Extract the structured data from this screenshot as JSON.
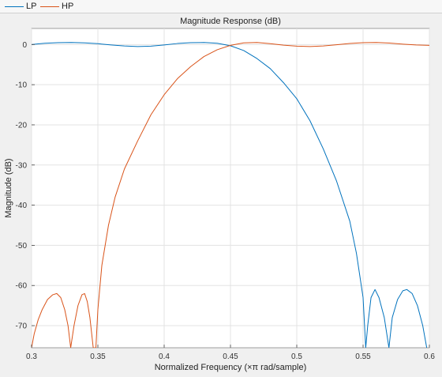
{
  "legend": {
    "items": [
      {
        "label": "LP",
        "color": "#0072BD"
      },
      {
        "label": "HP",
        "color": "#D95319"
      }
    ]
  },
  "chart_data": {
    "type": "line",
    "title": "Magnitude Response (dB)",
    "xlabel": "Normalized Frequency (×π rad/sample)",
    "ylabel": "Magnitude (dB)",
    "xlim": [
      0.3,
      0.6
    ],
    "ylim": [
      -75.5,
      4
    ],
    "xticks": [
      0.3,
      0.35,
      0.4,
      0.45,
      0.5,
      0.55,
      0.6
    ],
    "xtick_labels": [
      "0.3",
      "0.35",
      "0.4",
      "0.45",
      "0.5",
      "0.55",
      "0.6"
    ],
    "yticks": [
      0,
      -10,
      -20,
      -30,
      -40,
      -50,
      -60,
      -70
    ],
    "ytick_labels": [
      "0",
      "-10",
      "-20",
      "-30",
      "-40",
      "-50",
      "-60",
      "-70"
    ],
    "grid": true,
    "series": [
      {
        "name": "LP",
        "color": "#0072BD",
        "points": [
          [
            0.3,
            0.0
          ],
          [
            0.305,
            0.15
          ],
          [
            0.31,
            0.3
          ],
          [
            0.32,
            0.45
          ],
          [
            0.33,
            0.5
          ],
          [
            0.34,
            0.4
          ],
          [
            0.35,
            0.2
          ],
          [
            0.36,
            -0.1
          ],
          [
            0.37,
            -0.35
          ],
          [
            0.38,
            -0.5
          ],
          [
            0.39,
            -0.4
          ],
          [
            0.4,
            -0.1
          ],
          [
            0.41,
            0.25
          ],
          [
            0.42,
            0.45
          ],
          [
            0.43,
            0.5
          ],
          [
            0.44,
            0.3
          ],
          [
            0.45,
            -0.3
          ],
          [
            0.46,
            -1.5
          ],
          [
            0.47,
            -3.5
          ],
          [
            0.48,
            -6.0
          ],
          [
            0.49,
            -9.5
          ],
          [
            0.5,
            -13.5
          ],
          [
            0.51,
            -19.0
          ],
          [
            0.52,
            -26.0
          ],
          [
            0.53,
            -34.0
          ],
          [
            0.54,
            -44.0
          ],
          [
            0.545,
            -52.0
          ],
          [
            0.55,
            -63.0
          ],
          [
            0.552,
            -75.5
          ],
          [
            0.5535,
            -70.0
          ],
          [
            0.556,
            -63.0
          ],
          [
            0.559,
            -61.0
          ],
          [
            0.562,
            -63.0
          ],
          [
            0.566,
            -68.0
          ],
          [
            0.5695,
            -75.5
          ],
          [
            0.572,
            -68.0
          ],
          [
            0.576,
            -63.5
          ],
          [
            0.58,
            -61.3
          ],
          [
            0.583,
            -61.0
          ],
          [
            0.587,
            -62.0
          ],
          [
            0.591,
            -65.0
          ],
          [
            0.595,
            -70.0
          ],
          [
            0.598,
            -75.5
          ]
        ]
      },
      {
        "name": "HP",
        "color": "#D95319",
        "points": [
          [
            0.3,
            -75.5
          ],
          [
            0.302,
            -72.0
          ],
          [
            0.305,
            -68.5
          ],
          [
            0.308,
            -66.0
          ],
          [
            0.312,
            -63.5
          ],
          [
            0.316,
            -62.3
          ],
          [
            0.319,
            -62.0
          ],
          [
            0.322,
            -63.0
          ],
          [
            0.325,
            -66.0
          ],
          [
            0.3275,
            -70.0
          ],
          [
            0.3295,
            -75.5
          ],
          [
            0.332,
            -70.0
          ],
          [
            0.335,
            -65.0
          ],
          [
            0.338,
            -62.3
          ],
          [
            0.34,
            -62.0
          ],
          [
            0.342,
            -64.0
          ],
          [
            0.344,
            -68.0
          ],
          [
            0.3465,
            -75.5
          ],
          [
            0.3485,
            -75.5
          ],
          [
            0.35,
            -66.0
          ],
          [
            0.353,
            -55.0
          ],
          [
            0.358,
            -45.0
          ],
          [
            0.363,
            -38.0
          ],
          [
            0.37,
            -31.0
          ],
          [
            0.38,
            -24.0
          ],
          [
            0.39,
            -17.5
          ],
          [
            0.4,
            -12.5
          ],
          [
            0.41,
            -8.5
          ],
          [
            0.42,
            -5.5
          ],
          [
            0.43,
            -3.0
          ],
          [
            0.44,
            -1.3
          ],
          [
            0.45,
            -0.2
          ],
          [
            0.46,
            0.4
          ],
          [
            0.47,
            0.5
          ],
          [
            0.48,
            0.2
          ],
          [
            0.49,
            -0.15
          ],
          [
            0.5,
            -0.4
          ],
          [
            0.51,
            -0.5
          ],
          [
            0.52,
            -0.35
          ],
          [
            0.53,
            -0.05
          ],
          [
            0.54,
            0.25
          ],
          [
            0.55,
            0.45
          ],
          [
            0.56,
            0.5
          ],
          [
            0.57,
            0.35
          ],
          [
            0.58,
            0.1
          ],
          [
            0.59,
            -0.1
          ],
          [
            0.6,
            -0.2
          ]
        ]
      }
    ]
  }
}
